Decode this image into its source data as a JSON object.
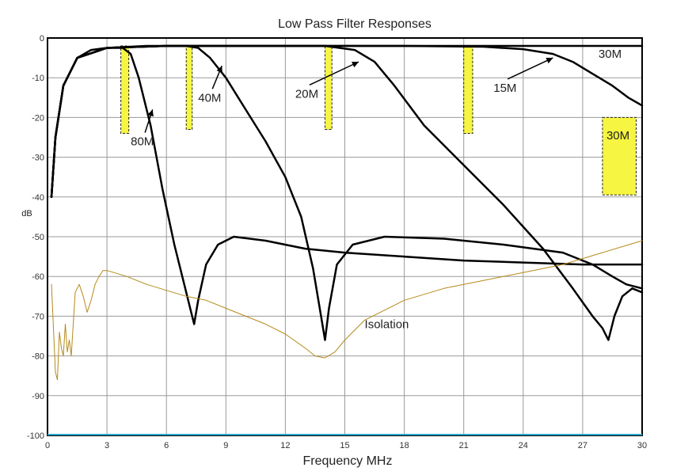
{
  "chart_data": {
    "type": "line",
    "title": "Low Pass Filter Responses",
    "xlabel": "Frequency MHz",
    "ylabel": "dB",
    "xlim": [
      0,
      30
    ],
    "ylim": [
      -100,
      0
    ],
    "grid": true,
    "x_ticks": [
      0,
      3,
      6,
      9,
      12,
      15,
      18,
      21,
      24,
      27,
      30
    ],
    "y_ticks": [
      0,
      -10,
      -20,
      -30,
      -40,
      -50,
      -60,
      -70,
      -80,
      -90,
      -100
    ],
    "colors": {
      "filter": "#000000",
      "isolation": "#b58a1a",
      "band": "#f5f542",
      "grid": "#9a9a9a",
      "baseline": "#2aa8c8"
    },
    "series": [
      {
        "name": "80M",
        "color": "#000000",
        "x": [
          0.2,
          0.4,
          0.8,
          1.5,
          2.2,
          3,
          3.8,
          4.2,
          4.6,
          5.2,
          5.8,
          6.4,
          6.9,
          7.2,
          7.4,
          7.6,
          8,
          8.6,
          9.4,
          11,
          13,
          15,
          18,
          21,
          24,
          27,
          30
        ],
        "y": [
          -40,
          -25,
          -12,
          -5,
          -3,
          -2.5,
          -2.5,
          -4,
          -10,
          -22,
          -38,
          -52,
          -62,
          -68,
          -72,
          -66,
          -57,
          -52,
          -50,
          -51,
          -53,
          -54,
          -55,
          -56,
          -56.5,
          -57,
          -57
        ]
      },
      {
        "name": "40M",
        "color": "#000000",
        "x": [
          0.2,
          0.4,
          0.8,
          1.5,
          3,
          5,
          7,
          7.6,
          8.2,
          9,
          10,
          11,
          12,
          12.8,
          13.4,
          13.8,
          14,
          14.2,
          14.6,
          15.4,
          17,
          20,
          23,
          26,
          27.5,
          28.5,
          29.2,
          30
        ],
        "y": [
          -40,
          -25,
          -12,
          -5,
          -2.5,
          -2,
          -2,
          -2.5,
          -5,
          -10,
          -18,
          -26,
          -35,
          -45,
          -58,
          -70,
          -76,
          -68,
          -57,
          -52,
          -50,
          -50.5,
          -52,
          -54,
          -57,
          -60,
          -62,
          -63
        ]
      },
      {
        "name": "20M",
        "color": "#000000",
        "x": [
          0.2,
          0.4,
          0.8,
          1.5,
          3,
          6,
          10,
          14,
          15.5,
          16.5,
          17.5,
          19,
          21,
          23,
          25,
          26.5,
          27.5,
          28,
          28.3,
          28.6,
          29,
          29.5,
          30
        ],
        "y": [
          -40,
          -25,
          -12,
          -5,
          -2.5,
          -2,
          -2,
          -2,
          -3,
          -6,
          -12,
          -22,
          -32,
          -42,
          -53,
          -63,
          -70,
          -73,
          -76,
          -70,
          -65,
          -63,
          -64
        ]
      },
      {
        "name": "30M",
        "color": "#000000",
        "x": [
          0.2,
          0.4,
          0.8,
          1.5,
          3,
          6,
          10,
          14,
          18,
          22,
          24,
          25.5,
          26.5,
          27.5,
          28.5,
          29.3,
          30
        ],
        "y": [
          -40,
          -25,
          -12,
          -5,
          -2.5,
          -2,
          -2,
          -2,
          -2,
          -2.2,
          -2.8,
          -4,
          -6,
          -9,
          -12,
          -15,
          -17
        ]
      },
      {
        "name": "",
        "color": "#000000",
        "x": [
          0.2,
          0.4,
          0.8,
          1.5,
          3,
          6,
          10,
          14,
          18,
          22,
          26,
          30
        ],
        "y": [
          -40,
          -25,
          -12,
          -5,
          -2.5,
          -2,
          -2,
          -2,
          -2,
          -2,
          -2,
          -2
        ]
      },
      {
        "name": "Isolation",
        "color": "#b58a1a",
        "x": [
          0.2,
          0.4,
          0.5,
          0.6,
          0.7,
          0.8,
          0.9,
          1.0,
          1.1,
          1.2,
          1.3,
          1.4,
          1.6,
          1.8,
          2.0,
          2.2,
          2.4,
          2.6,
          2.8,
          3,
          4,
          5,
          6,
          7,
          8,
          9,
          10,
          11,
          12,
          13,
          13.5,
          14,
          14.5,
          15,
          16,
          18,
          20,
          22,
          24,
          26,
          28,
          30
        ],
        "y": [
          -62,
          -84,
          -86,
          -74,
          -78,
          -80,
          -72,
          -79,
          -76,
          -80,
          -72,
          -64,
          -62,
          -65,
          -69,
          -66,
          -62,
          -60,
          -58.5,
          -58.5,
          -60,
          -62,
          -63.5,
          -65,
          -66,
          -68,
          -70,
          -72,
          -74.5,
          -78,
          -80,
          -80.5,
          -79,
          -76,
          -71,
          -66,
          -63,
          -61,
          -59,
          -57,
          -54,
          -51
        ]
      }
    ],
    "bands": [
      {
        "x": [
          3.7,
          4.1
        ],
        "y": [
          -2,
          -24
        ]
      },
      {
        "x": [
          7.0,
          7.3
        ],
        "y": [
          -2,
          -23
        ]
      },
      {
        "x": [
          14.0,
          14.35
        ],
        "y": [
          -2,
          -23
        ]
      },
      {
        "x": [
          21.0,
          21.45
        ],
        "y": [
          -2,
          -24
        ]
      },
      {
        "x": [
          28.0,
          29.7
        ],
        "y": [
          -20,
          -39.5
        ]
      }
    ],
    "annotations": [
      {
        "text": "80M",
        "x": 4.2,
        "y": -27,
        "arrow_to": [
          5.3,
          -18
        ]
      },
      {
        "text": "40M",
        "x": 7.6,
        "y": -16,
        "arrow_to": [
          8.8,
          -7
        ]
      },
      {
        "text": "20M",
        "x": 12.5,
        "y": -15,
        "arrow_to": [
          15.7,
          -6
        ]
      },
      {
        "text": "15M",
        "x": 22.5,
        "y": -13.5,
        "arrow_to": [
          25.5,
          -5
        ]
      },
      {
        "text": "30M",
        "x": 27.8,
        "y": -5,
        "arrow_to": null
      },
      {
        "text": "30M",
        "x": 28.2,
        "y": -25.5,
        "arrow_to": null
      },
      {
        "text": "Isolation",
        "x": 16,
        "y": -73,
        "arrow_to": null
      }
    ]
  }
}
